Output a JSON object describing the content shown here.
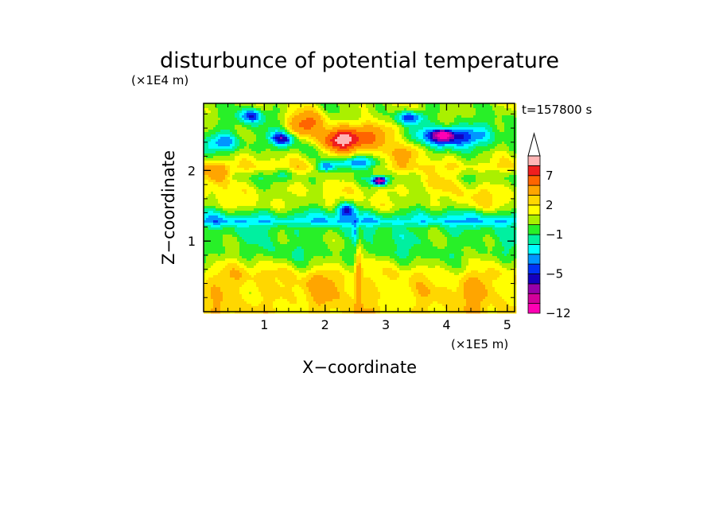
{
  "chart_data": {
    "type": "heatmap",
    "title": "disturbunce of potential temperature",
    "xlabel": "X−coordinate",
    "ylabel": "Z−coordinate",
    "x_scale_label": "(×1E5 m)",
    "y_scale_label": "(×1E4 m)",
    "time_label": "t=157800 s",
    "xlim": [
      0,
      5.12
    ],
    "ylim": [
      0,
      2.95
    ],
    "x_ticks": [
      {
        "value": 1,
        "label": "1"
      },
      {
        "value": 2,
        "label": "2"
      },
      {
        "value": 3,
        "label": "3"
      },
      {
        "value": 4,
        "label": "4"
      },
      {
        "value": 5,
        "label": "5"
      }
    ],
    "y_ticks": [
      {
        "value": 1,
        "label": "1"
      },
      {
        "value": 2,
        "label": "2"
      }
    ],
    "colorbar": {
      "levels": [
        -12,
        -10,
        -8,
        -6,
        -5,
        -4,
        -3,
        -2,
        -1,
        0,
        1,
        2,
        3,
        5,
        7,
        9,
        11
      ],
      "colors": [
        "#ff00b4",
        "#d2009b",
        "#9600aa",
        "#1400be",
        "#0032f5",
        "#0096ff",
        "#00ffff",
        "#00f0a0",
        "#28f028",
        "#aaf000",
        "#ffff00",
        "#ffd700",
        "#ffa500",
        "#ff6400",
        "#f01e1e",
        "#ffb4b4"
      ],
      "over_color": "#ffffff",
      "tick_labels": [
        {
          "value": 7,
          "label": "7"
        },
        {
          "value": 2,
          "label": "2"
        },
        {
          "value": -1,
          "label": "−1"
        },
        {
          "value": -5,
          "label": "−5"
        },
        {
          "value": -12,
          "label": "−12"
        }
      ]
    },
    "layers": [
      {
        "z": 0.22,
        "amp": 0.9,
        "v": 2.2
      },
      {
        "z": 0.55,
        "amp": 0.8,
        "v": 1.6
      },
      {
        "z": 0.82,
        "amp": 0.6,
        "v": -0.5
      },
      {
        "z": 1.02,
        "amp": 0.5,
        "v": -0.4
      },
      {
        "z": 1.18,
        "amp": 0.6,
        "v": -0.9
      },
      {
        "z": 1.28,
        "amp": 0.25,
        "v": -3.0
      },
      {
        "z": 1.5,
        "amp": 0.8,
        "v": 0.8
      },
      {
        "z": 1.72,
        "amp": 0.8,
        "v": 1.2
      },
      {
        "z": 1.9,
        "amp": 0.6,
        "v": 0.1
      },
      {
        "z": 2.05,
        "amp": 0.6,
        "v": 2.0
      },
      {
        "z": 2.3,
        "amp": 0.8,
        "v": -0.3
      },
      {
        "z": 2.65,
        "amp": 0.8,
        "v": -0.1
      },
      {
        "z": 2.9,
        "amp": 0.6,
        "v": 0.5
      }
    ],
    "features": [
      {
        "x": 2.25,
        "z": 2.42,
        "sx": 0.3,
        "sz": 0.16,
        "v": 10.0
      },
      {
        "x": 2.8,
        "z": 2.5,
        "sx": 0.35,
        "sz": 0.22,
        "v": 5.5
      },
      {
        "x": 1.7,
        "z": 2.65,
        "sx": 0.3,
        "sz": 0.18,
        "v": 5.5
      },
      {
        "x": 3.4,
        "z": 2.28,
        "sx": 0.28,
        "sz": 0.14,
        "v": 3.5
      },
      {
        "x": 0.2,
        "z": 1.95,
        "sx": 0.25,
        "sz": 0.16,
        "v": 4.0
      },
      {
        "x": 2.5,
        "z": 2.1,
        "sx": 0.35,
        "sz": 0.1,
        "v": -5.5
      },
      {
        "x": 2.9,
        "z": 1.85,
        "sx": 0.12,
        "sz": 0.06,
        "v": -9.0
      },
      {
        "x": 2.0,
        "z": 2.05,
        "sx": 0.15,
        "sz": 0.07,
        "v": -5.0
      },
      {
        "x": 4.1,
        "z": 2.48,
        "sx": 0.55,
        "sz": 0.14,
        "v": -6.0
      },
      {
        "x": 3.95,
        "z": 2.5,
        "sx": 0.12,
        "sz": 0.06,
        "v": -9.0
      },
      {
        "x": 3.4,
        "z": 2.75,
        "sx": 0.25,
        "sz": 0.1,
        "v": -5.0
      },
      {
        "x": 0.8,
        "z": 2.78,
        "sx": 0.2,
        "sz": 0.1,
        "v": -5.0
      },
      {
        "x": 1.3,
        "z": 2.45,
        "sx": 0.2,
        "sz": 0.09,
        "v": -5.0
      },
      {
        "x": 0.3,
        "z": 2.4,
        "sx": 0.3,
        "sz": 0.12,
        "v": -3.5
      },
      {
        "x": 2.35,
        "z": 1.45,
        "sx": 0.15,
        "sz": 0.1,
        "v": -5.0
      },
      {
        "x": 1.3,
        "z": 1.95,
        "sx": 0.2,
        "sz": 0.1,
        "v": -2.0
      },
      {
        "x": 2.55,
        "z": 0.55,
        "sx": 0.06,
        "sz": 0.55,
        "v": 3.0
      },
      {
        "x": 2.5,
        "z": 1.1,
        "sx": 0.05,
        "sz": 0.25,
        "v": -2.0
      },
      {
        "x": 2.0,
        "z": 0.4,
        "sx": 0.3,
        "sz": 0.2,
        "v": 2.0
      },
      {
        "x": 4.5,
        "z": 0.35,
        "sx": 0.3,
        "sz": 0.2,
        "v": 2.0
      },
      {
        "x": 0.5,
        "z": 0.5,
        "sx": 0.35,
        "sz": 0.2,
        "v": 1.5
      },
      {
        "x": 3.8,
        "z": 1.85,
        "sx": 0.35,
        "sz": 0.12,
        "v": 1.5
      },
      {
        "x": 4.5,
        "z": 1.6,
        "sx": 0.35,
        "sz": 0.15,
        "v": 1.0
      },
      {
        "x": 3.3,
        "z": 1.05,
        "sx": 0.4,
        "sz": 0.1,
        "v": -0.6
      }
    ]
  }
}
